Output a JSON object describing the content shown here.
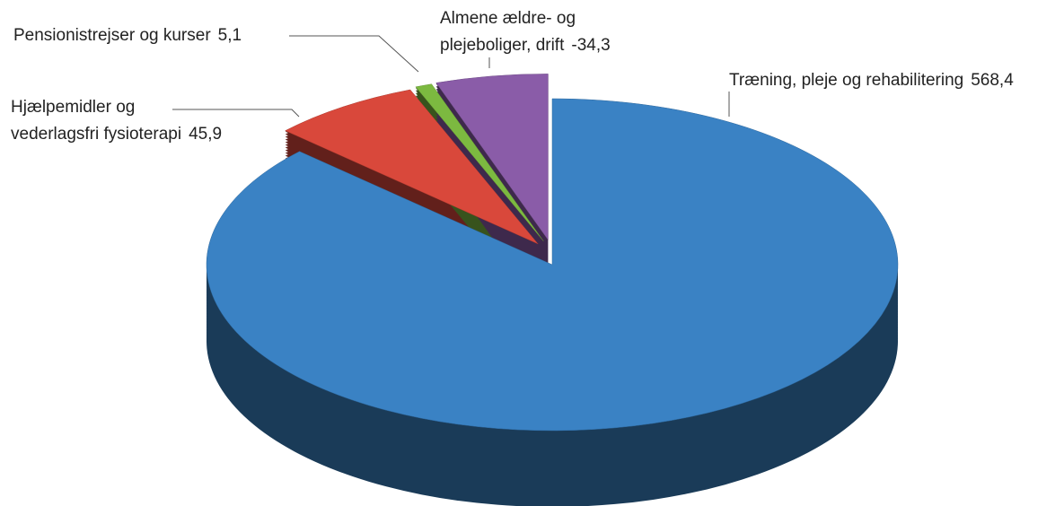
{
  "chart_data": {
    "type": "pie3d",
    "categories": [
      "Træning, pleje og rehabilitering",
      "Hjælpemidler og\nvederlagsfri fysioterapi",
      "Pensionistrejser og kurser",
      "Almene ældre- og\nplejeboliger, drift"
    ],
    "values": [
      568.4,
      45.9,
      5.1,
      -34.3
    ],
    "value_labels": [
      "568,4",
      "45,9",
      "5,1",
      "-34,3"
    ],
    "colors": [
      "#3a82c4",
      "#d9483b",
      "#7cb940",
      "#8a5ca8"
    ]
  }
}
